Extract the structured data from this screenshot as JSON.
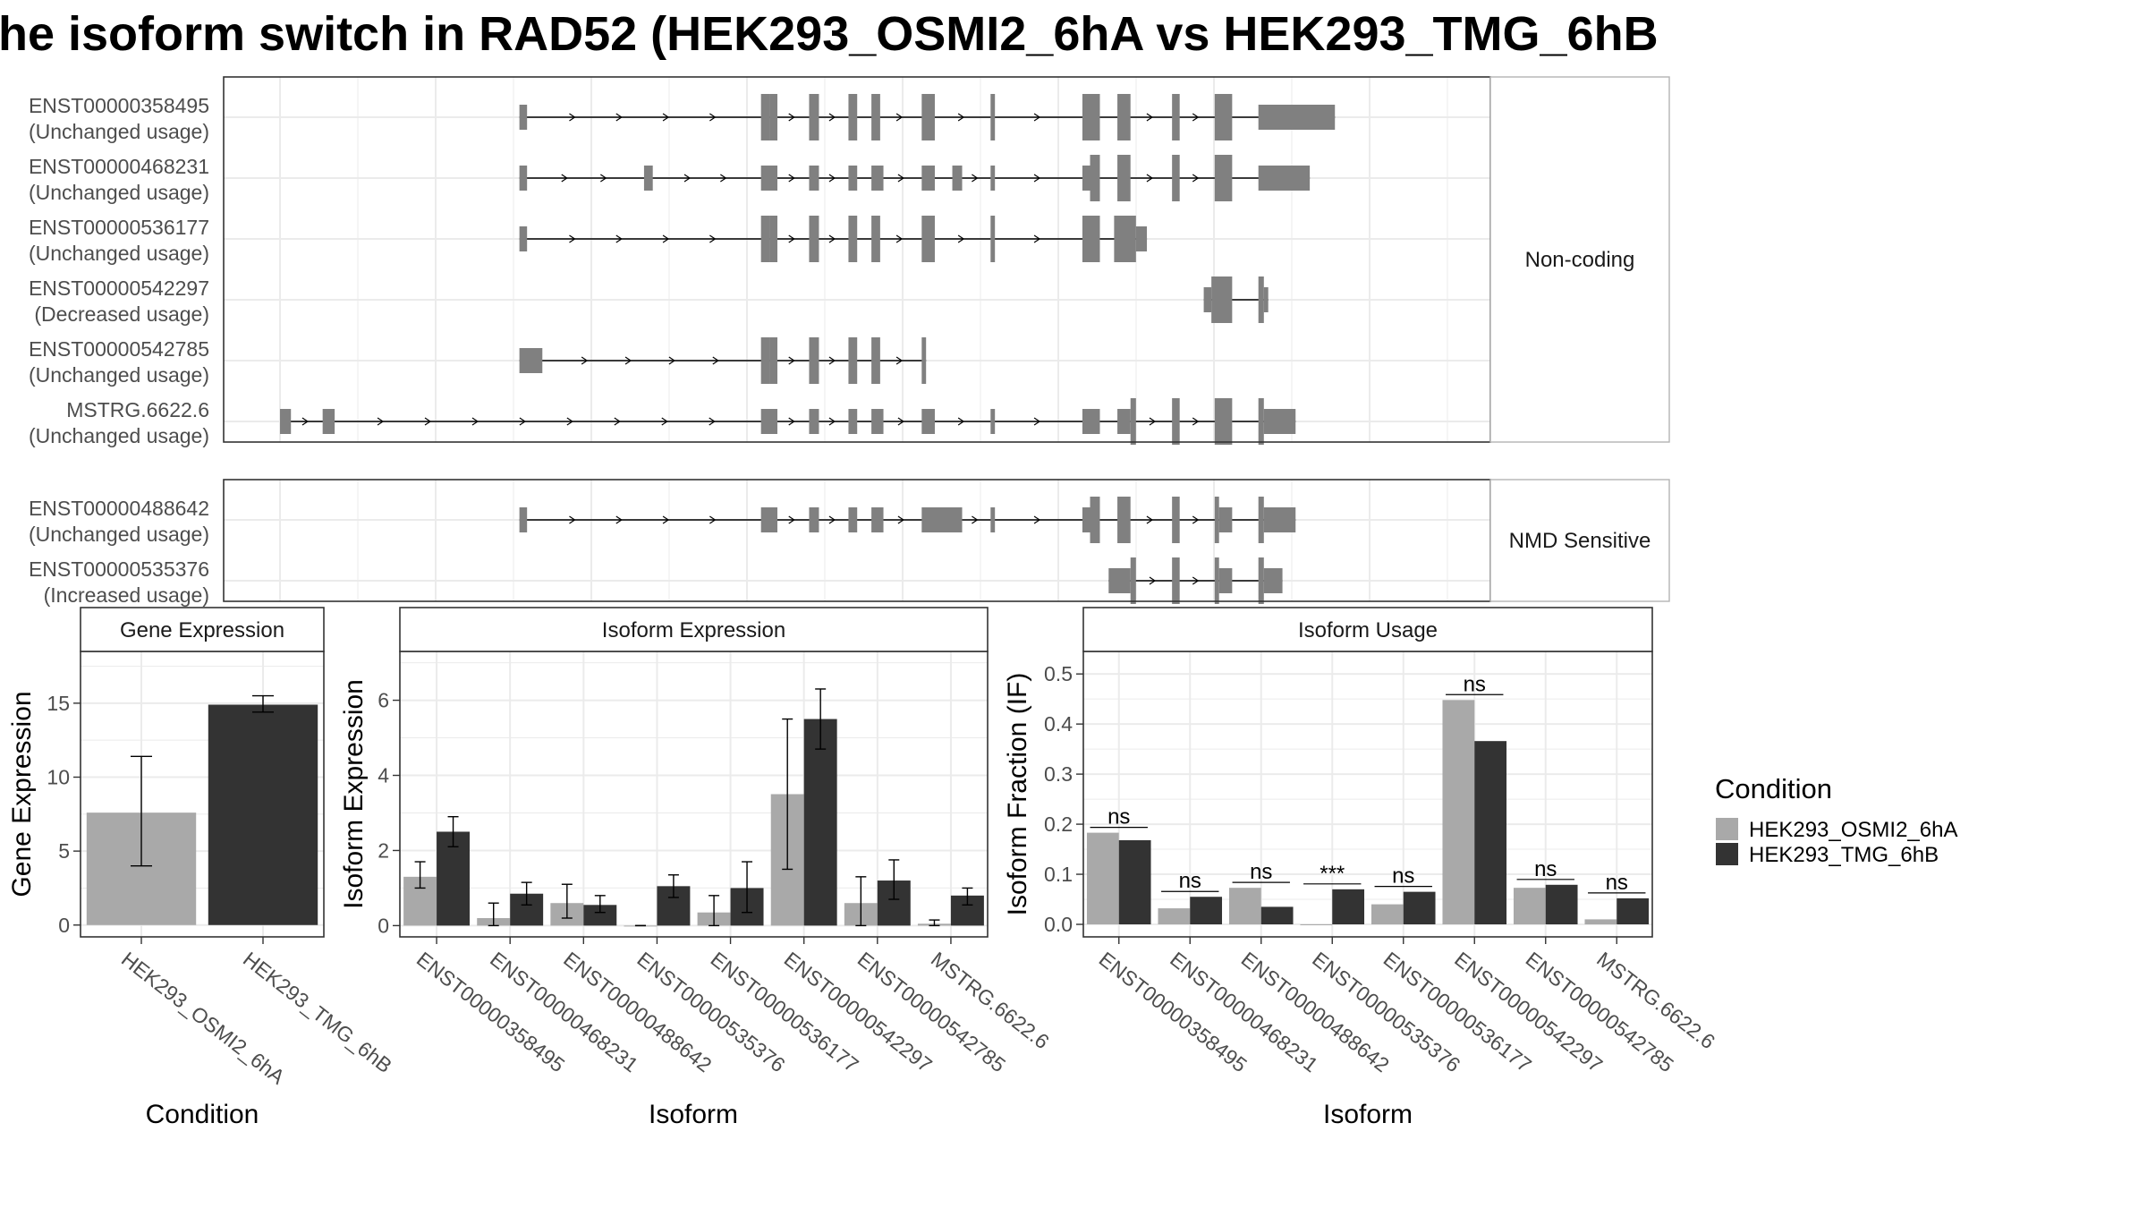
{
  "title": "he isoform switch in RAD52 (HEK293_OSMI2_6hA vs HEK293_TMG_6hB",
  "colors": {
    "exon": "#808080",
    "cond_a": "#a9a9a9",
    "cond_b": "#333333",
    "grid": "#ebebeb",
    "panel_border": "#333333",
    "strip_fill": "#ffffff"
  },
  "structure": {
    "x_range": [
      0,
      100
    ],
    "panels": [
      {
        "label": "Non-coding",
        "transcripts": [
          {
            "id": "ENST00000358495",
            "usage": "(Unchanged usage)",
            "exons": [
              [
                21.9,
                22.6,
                "s"
              ],
              [
                44.0,
                44.8,
                "t"
              ],
              [
                44.8,
                45.5,
                "t"
              ],
              [
                48.4,
                49.3,
                "t"
              ],
              [
                52.0,
                52.8,
                "t"
              ],
              [
                54.1,
                54.9,
                "t"
              ],
              [
                58.7,
                59.9,
                "t"
              ],
              [
                65.0,
                65.4,
                "t"
              ],
              [
                73.4,
                75.0,
                "t"
              ],
              [
                76.6,
                77.8,
                "t"
              ],
              [
                81.6,
                82.3,
                "t"
              ],
              [
                85.5,
                87.1,
                "t"
              ],
              [
                89.5,
                96.5,
                "s"
              ]
            ]
          },
          {
            "id": "ENST00000468231",
            "usage": "(Unchanged usage)",
            "exons": [
              [
                21.9,
                22.6,
                "s"
              ],
              [
                33.3,
                34.1,
                "s"
              ],
              [
                44.0,
                45.5,
                "s"
              ],
              [
                48.4,
                49.3,
                "s"
              ],
              [
                52.0,
                52.8,
                "s"
              ],
              [
                54.1,
                55.2,
                "s"
              ],
              [
                58.7,
                59.9,
                "s"
              ],
              [
                61.5,
                62.4,
                "s"
              ],
              [
                65.0,
                65.4,
                "s"
              ],
              [
                73.4,
                74.1,
                "s"
              ],
              [
                74.1,
                75.0,
                "t"
              ],
              [
                76.6,
                77.8,
                "t"
              ],
              [
                81.6,
                82.3,
                "t"
              ],
              [
                85.5,
                87.1,
                "t"
              ],
              [
                89.5,
                94.2,
                "s"
              ]
            ]
          },
          {
            "id": "ENST00000536177",
            "usage": "(Unchanged usage)",
            "exons": [
              [
                21.9,
                22.6,
                "s"
              ],
              [
                44.0,
                44.8,
                "t"
              ],
              [
                44.8,
                45.5,
                "t"
              ],
              [
                48.4,
                49.3,
                "t"
              ],
              [
                52.0,
                52.8,
                "t"
              ],
              [
                54.1,
                54.9,
                "t"
              ],
              [
                58.7,
                59.9,
                "t"
              ],
              [
                65.0,
                65.4,
                "t"
              ],
              [
                73.4,
                75.0,
                "t"
              ],
              [
                76.3,
                78.3,
                "t"
              ],
              [
                78.3,
                79.3,
                "s"
              ]
            ]
          },
          {
            "id": "ENST00000542297",
            "usage": "(Decreased usage)",
            "exons": [
              [
                84.5,
                85.2,
                "s"
              ],
              [
                85.2,
                87.1,
                "t"
              ],
              [
                89.5,
                90.0,
                "t"
              ],
              [
                90.0,
                90.4,
                "s"
              ]
            ]
          },
          {
            "id": "ENST00000542785",
            "usage": "(Unchanged usage)",
            "exons": [
              [
                21.9,
                24.0,
                "s"
              ],
              [
                44.0,
                44.8,
                "t"
              ],
              [
                44.8,
                45.5,
                "t"
              ],
              [
                48.4,
                49.3,
                "t"
              ],
              [
                52.0,
                52.8,
                "t"
              ],
              [
                54.1,
                54.9,
                "t"
              ],
              [
                58.7,
                59.1,
                "t"
              ]
            ]
          },
          {
            "id": "MSTRG.6622.6",
            "usage": "(Unchanged usage)",
            "exons": [
              [
                0.0,
                1.0,
                "s"
              ],
              [
                3.9,
                5.0,
                "s"
              ],
              [
                44.0,
                45.5,
                "s"
              ],
              [
                48.4,
                49.3,
                "s"
              ],
              [
                52.0,
                52.8,
                "s"
              ],
              [
                54.1,
                55.2,
                "s"
              ],
              [
                58.7,
                59.9,
                "s"
              ],
              [
                65.0,
                65.4,
                "s"
              ],
              [
                73.4,
                75.0,
                "s"
              ],
              [
                76.6,
                77.8,
                "s"
              ],
              [
                77.8,
                78.3,
                "t"
              ],
              [
                81.6,
                82.3,
                "t"
              ],
              [
                85.5,
                87.1,
                "t"
              ],
              [
                89.5,
                90.0,
                "t"
              ],
              [
                90.0,
                92.9,
                "s"
              ]
            ]
          }
        ]
      },
      {
        "label": "NMD Sensitive",
        "transcripts": [
          {
            "id": "ENST00000488642",
            "usage": "(Unchanged usage)",
            "exons": [
              [
                21.9,
                22.6,
                "s"
              ],
              [
                44.0,
                45.5,
                "s"
              ],
              [
                48.4,
                49.3,
                "s"
              ],
              [
                52.0,
                52.8,
                "s"
              ],
              [
                54.1,
                55.2,
                "s"
              ],
              [
                58.7,
                62.4,
                "s"
              ],
              [
                65.0,
                65.4,
                "s"
              ],
              [
                73.4,
                74.1,
                "s"
              ],
              [
                74.1,
                75.0,
                "t"
              ],
              [
                76.6,
                77.8,
                "t"
              ],
              [
                81.6,
                82.3,
                "t"
              ],
              [
                85.5,
                85.9,
                "t"
              ],
              [
                85.9,
                87.1,
                "s"
              ],
              [
                89.5,
                90.0,
                "t"
              ],
              [
                90.0,
                92.9,
                "s"
              ]
            ]
          },
          {
            "id": "ENST00000535376",
            "usage": "(Increased usage)",
            "exons": [
              [
                75.8,
                77.8,
                "s"
              ],
              [
                77.8,
                78.3,
                "t"
              ],
              [
                81.6,
                82.3,
                "t"
              ],
              [
                85.5,
                85.9,
                "t"
              ],
              [
                85.9,
                87.1,
                "s"
              ],
              [
                89.5,
                90.0,
                "t"
              ],
              [
                90.0,
                91.7,
                "s"
              ]
            ]
          }
        ]
      }
    ]
  },
  "chart_data": [
    {
      "type": "bar",
      "title": "Gene Expression",
      "xlabel": "Condition",
      "ylabel": "Gene Expression",
      "ylim": [
        -0.8,
        18.5
      ],
      "yticks": [
        0,
        5,
        10,
        15
      ],
      "categories": [
        "HEK293_OSMI2_6hA",
        "HEK293_TMG_6hB"
      ],
      "values": [
        7.6,
        14.9
      ],
      "errors": [
        [
          4.0,
          11.4
        ],
        [
          14.4,
          15.5
        ]
      ]
    },
    {
      "type": "bar",
      "title": "Isoform Expression",
      "xlabel": "Isoform",
      "ylabel": "Isoform Expression",
      "ylim": [
        -0.3,
        7.3
      ],
      "yticks": [
        0,
        2,
        4,
        6
      ],
      "categories": [
        "ENST00000358495",
        "ENST00000468231",
        "ENST00000488642",
        "ENST00000535376",
        "ENST00000536177",
        "ENST00000542297",
        "ENST00000542785",
        "MSTRG.6622.6"
      ],
      "series": [
        {
          "name": "HEK293_OSMI2_6hA",
          "values": [
            1.3,
            0.2,
            0.6,
            0.0,
            0.35,
            3.5,
            0.6,
            0.05
          ],
          "errors": [
            [
              1.0,
              1.7
            ],
            [
              0.0,
              0.6
            ],
            [
              0.2,
              1.1
            ],
            [
              0.0,
              0.0
            ],
            [
              0.0,
              0.8
            ],
            [
              1.5,
              5.5
            ],
            [
              0.0,
              1.3
            ],
            [
              0.0,
              0.15
            ]
          ]
        },
        {
          "name": "HEK293_TMG_6hB",
          "values": [
            2.5,
            0.85,
            0.55,
            1.05,
            1.0,
            5.5,
            1.2,
            0.8
          ],
          "errors": [
            [
              2.1,
              2.9
            ],
            [
              0.55,
              1.15
            ],
            [
              0.35,
              0.8
            ],
            [
              0.75,
              1.35
            ],
            [
              0.35,
              1.7
            ],
            [
              4.7,
              6.3
            ],
            [
              0.7,
              1.75
            ],
            [
              0.55,
              1.0
            ]
          ]
        }
      ]
    },
    {
      "type": "bar",
      "title": "Isoform Usage",
      "xlabel": "Isoform",
      "ylabel": "Isoform Fraction (IF)",
      "ylim": [
        -0.025,
        0.545
      ],
      "yticks": [
        0.0,
        0.1,
        0.2,
        0.3,
        0.4,
        0.5
      ],
      "ytick_labels": [
        "0.0",
        "0.1",
        "0.2",
        "0.3",
        "0.4",
        "0.5"
      ],
      "categories": [
        "ENST00000358495",
        "ENST00000468231",
        "ENST00000488642",
        "ENST00000535376",
        "ENST00000536177",
        "ENST00000542297",
        "ENST00000542785",
        "MSTRG.6622.6"
      ],
      "series": [
        {
          "name": "HEK293_OSMI2_6hA",
          "values": [
            0.183,
            0.032,
            0.073,
            0.0,
            0.04,
            0.448,
            0.073,
            0.01
          ]
        },
        {
          "name": "HEK293_TMG_6hB",
          "values": [
            0.168,
            0.055,
            0.035,
            0.07,
            0.065,
            0.366,
            0.079,
            0.052
          ]
        }
      ],
      "significance": [
        "ns",
        "ns",
        "ns",
        "***",
        "ns",
        "ns",
        "ns",
        "ns"
      ]
    }
  ],
  "legend": {
    "title": "Condition",
    "items": [
      "HEK293_OSMI2_6hA",
      "HEK293_TMG_6hB"
    ]
  }
}
